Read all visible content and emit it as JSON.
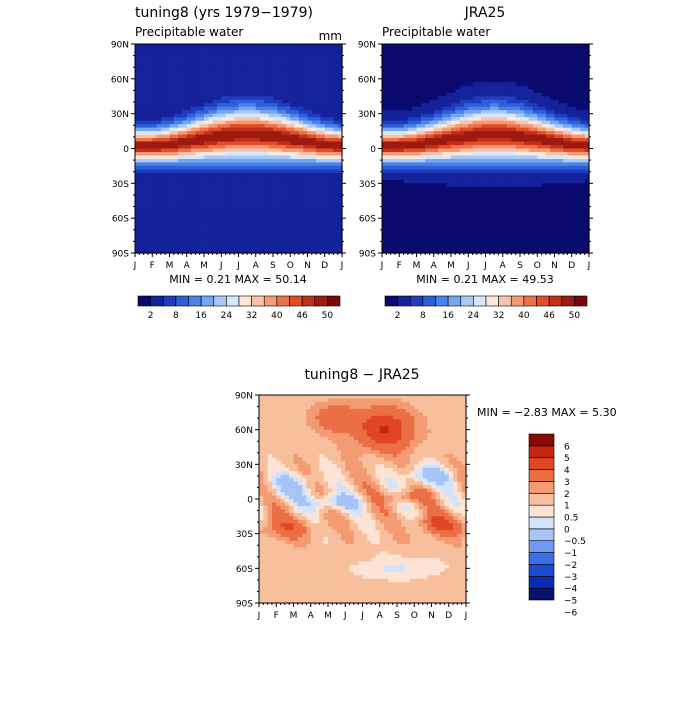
{
  "colors": {
    "abs_scale": [
      "#0b0a6e",
      "#14229b",
      "#1f3cbf",
      "#2c5fd9",
      "#4a82e8",
      "#76a6f2",
      "#a8c8f8",
      "#d8e8fb",
      "#fde8da",
      "#f9c3a9",
      "#f49a78",
      "#ee7249",
      "#e14e28",
      "#c3301a",
      "#9e1a10",
      "#770a08"
    ],
    "diff_scale": [
      "#07126e",
      "#0d2bb0",
      "#1d49d1",
      "#3c6fe8",
      "#6f9af3",
      "#a6c4f7",
      "#d2e3fa",
      "#fce3d3",
      "#f8bf9c",
      "#f39b72",
      "#ec6e45",
      "#e14526",
      "#c2280f",
      "#8a0a06"
    ]
  },
  "chart_data": [
    {
      "type": "heatmap",
      "panel": "model",
      "title": "tuning8 (yrs 1979−1979)",
      "subtitle": "Precipitable water",
      "units": "mm",
      "min_max_text": "MIN =    0.21  MAX =   50.14",
      "min": 0.21,
      "max": 50.14,
      "x_ticks": [
        "J",
        "F",
        "M",
        "A",
        "M",
        "J",
        "J",
        "A",
        "S",
        "O",
        "N",
        "D",
        "J"
      ],
      "y_ticks": [
        "90N",
        "60N",
        "30N",
        "0",
        "30S",
        "60S",
        "90S"
      ],
      "ylim": [
        -90,
        90
      ],
      "colorbar_labels": [
        "2",
        "8",
        "16",
        "24",
        "32",
        "40",
        "46",
        "50"
      ]
    },
    {
      "type": "heatmap",
      "panel": "reanalysis",
      "title": "JRA25",
      "subtitle": "Precipitable water",
      "min_max_text": "MIN =    0.21  MAX =   49.53",
      "min": 0.21,
      "max": 49.53,
      "x_ticks": [
        "J",
        "F",
        "M",
        "A",
        "M",
        "J",
        "J",
        "A",
        "S",
        "O",
        "N",
        "D",
        "J"
      ],
      "y_ticks": [
        "90N",
        "60N",
        "30N",
        "0",
        "30S",
        "60S",
        "90S"
      ],
      "ylim": [
        -90,
        90
      ],
      "colorbar_labels": [
        "2",
        "8",
        "16",
        "24",
        "32",
        "40",
        "46",
        "50"
      ]
    },
    {
      "type": "heatmap",
      "panel": "difference",
      "title": "tuning8 − JRA25",
      "min_max_text": "MIN =   −2.83 MAX =    5.30",
      "min": -2.83,
      "max": 5.3,
      "x_ticks": [
        "J",
        "F",
        "M",
        "A",
        "M",
        "J",
        "J",
        "A",
        "S",
        "O",
        "N",
        "D",
        "J"
      ],
      "y_ticks": [
        "90N",
        "60N",
        "30N",
        "0",
        "30S",
        "60S",
        "90S"
      ],
      "ylim": [
        -90,
        90
      ],
      "colorbar_labels": [
        "6",
        "5",
        "4",
        "3",
        "2",
        "1",
        "0.5",
        "0",
        "−0.5",
        "−1",
        "−2",
        "−3",
        "−4",
        "−5",
        "−6"
      ]
    }
  ]
}
